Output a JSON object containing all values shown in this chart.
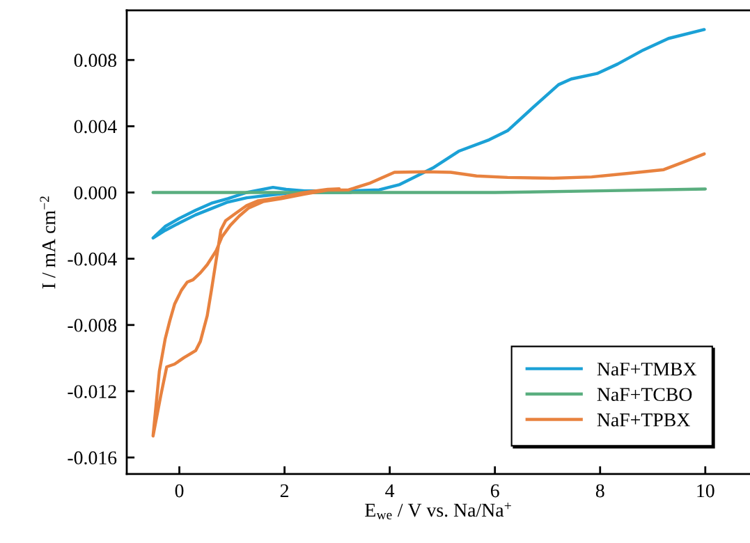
{
  "chart_data": {
    "type": "line",
    "xlabel": "E$_{we}$ / V vs. Na/Na$^{+}$",
    "ylabel": "I / mA cm$^{−2}$",
    "xlim": [
      -1,
      10.85
    ],
    "ylim": [
      -0.017,
      0.011
    ],
    "xticks": [
      0,
      2,
      4,
      6,
      8,
      10
    ],
    "yticks": [
      {
        "value": 0.008,
        "label": "0.008"
      },
      {
        "value": 0.004,
        "label": "0.004"
      },
      {
        "value": 0,
        "label": "0.000"
      },
      {
        "value": -0.004,
        "label": "-0.004"
      },
      {
        "value": -0.008,
        "label": "-0.008"
      },
      {
        "value": -0.012,
        "label": "-0.012"
      },
      {
        "value": -0.016,
        "label": "-0.016"
      }
    ],
    "grid": false,
    "legend": "bottom right",
    "marker": "none",
    "line_style": "solid",
    "series": [
      {
        "name": "NaF+TMBX",
        "color": "#1ba1d6",
        "x": [
          3.26,
          2.82,
          2.16,
          1.72,
          1.28,
          0.92,
          0.61,
          0.31,
          0.0,
          -0.27,
          -0.5,
          -0.27,
          0.0,
          0.31,
          0.61,
          0.92,
          1.28,
          1.78,
          2.03,
          2.38,
          3.04,
          3.22,
          3.8,
          4.19,
          4.82,
          5.31,
          5.89,
          6.24,
          6.72,
          7.21,
          7.45,
          7.94,
          8.33,
          8.82,
          9.3,
          9.98
        ],
        "values": [
          0.0,
          0.0,
          0.0,
          -0.00016,
          -0.00032,
          -0.00058,
          -0.00097,
          -0.00135,
          -0.00184,
          -0.00229,
          -0.00275,
          -0.00205,
          -0.00156,
          -0.00107,
          -0.00065,
          -0.00037,
          0.0,
          0.00031,
          0.00019,
          0.0001,
          0.0001,
          0.0001,
          0.00016,
          0.00048,
          0.00148,
          0.00249,
          0.00318,
          0.00373,
          0.00512,
          0.00651,
          0.00685,
          0.00718,
          0.00775,
          0.0086,
          0.0093,
          0.00984
        ]
      },
      {
        "name": "NaF+TCBO",
        "color": "#5aae7f",
        "x": [
          -0.5,
          2,
          4,
          6,
          8,
          10
        ],
        "values": [
          0.0,
          0.0,
          0.0,
          0.0,
          0.0001,
          0.00021
        ]
      },
      {
        "name": "NaF+TPBX",
        "color": "#e8823f",
        "x": [
          3.04,
          2.82,
          2.38,
          1.94,
          1.5,
          1.28,
          1.06,
          0.88,
          0.79,
          0.7,
          0.61,
          0.53,
          0.4,
          0.31,
          0.09,
          -0.09,
          -0.24,
          -0.35,
          -0.5,
          -0.38,
          -0.27,
          -0.18,
          -0.09,
          0.04,
          0.15,
          0.26,
          0.4,
          0.53,
          0.7,
          0.81,
          0.97,
          1.14,
          1.32,
          1.59,
          1.94,
          2.38,
          2.82,
          3.22,
          3.61,
          4.09,
          4.68,
          5.16,
          5.65,
          6.24,
          7.11,
          7.84,
          8.57,
          9.21,
          9.55,
          9.98
        ],
        "values": [
          0.00022,
          0.00019,
          0.0,
          -0.00029,
          -0.0005,
          -0.00079,
          -0.00128,
          -0.0017,
          -0.00226,
          -0.00408,
          -0.0059,
          -0.00744,
          -0.00899,
          -0.00955,
          -0.00997,
          -0.01036,
          -0.01053,
          -0.01221,
          -0.0147,
          -0.0108,
          -0.00885,
          -0.00773,
          -0.00674,
          -0.0059,
          -0.00541,
          -0.00527,
          -0.00485,
          -0.00436,
          -0.00352,
          -0.00268,
          -0.00198,
          -0.00142,
          -0.00093,
          -0.00055,
          -0.00037,
          -0.0001,
          0.00015,
          0.00016,
          0.00055,
          0.00122,
          0.00125,
          0.00122,
          0.001,
          0.00091,
          0.00086,
          0.00094,
          0.00117,
          0.00138,
          0.00179,
          0.00233
        ]
      }
    ]
  }
}
